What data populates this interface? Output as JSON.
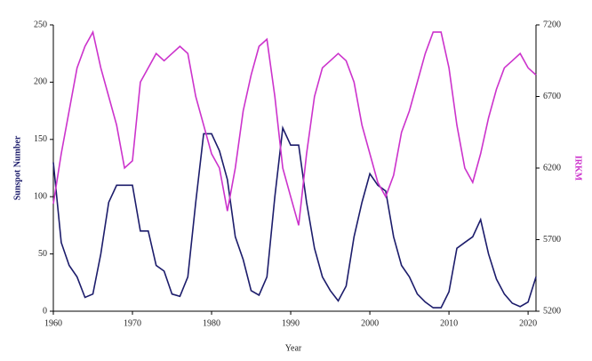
{
  "chart_data": {
    "type": "line",
    "x_label": "Year",
    "y_label": "Sunspot Number",
    "y2_label": "IRKM",
    "x": [
      1960,
      1961,
      1962,
      1963,
      1964,
      1965,
      1966,
      1967,
      1968,
      1969,
      1970,
      1971,
      1972,
      1973,
      1974,
      1975,
      1976,
      1977,
      1978,
      1979,
      1980,
      1981,
      1982,
      1983,
      1984,
      1985,
      1986,
      1987,
      1988,
      1989,
      1990,
      1991,
      1992,
      1993,
      1994,
      1995,
      1996,
      1997,
      1998,
      1999,
      2000,
      2001,
      2002,
      2003,
      2004,
      2005,
      2006,
      2007,
      2008,
      2009,
      2010,
      2011,
      2012,
      2013,
      2014,
      2015,
      2016,
      2017,
      2018,
      2019,
      2020,
      2021
    ],
    "series": [
      {
        "name": "Sunspot Number",
        "color": "#1c1c6b",
        "values": [
          130,
          60,
          40,
          30,
          12,
          15,
          50,
          95,
          110,
          110,
          110,
          70,
          70,
          40,
          35,
          15,
          13,
          30,
          95,
          155,
          155,
          140,
          115,
          65,
          45,
          18,
          14,
          30,
          100,
          160,
          145,
          145,
          95,
          55,
          30,
          18,
          9,
          22,
          65,
          95,
          120,
          110,
          105,
          65,
          40,
          30,
          15,
          8,
          3,
          3,
          17,
          55,
          60,
          65,
          80,
          50,
          28,
          15,
          7,
          4,
          8,
          30
        ]
      },
      {
        "name": "IRKM",
        "color": "#cc33cc",
        "axis": "y2",
        "values": [
          5950,
          6300,
          6600,
          6900,
          7050,
          7150,
          6900,
          6700,
          6500,
          6200,
          6250,
          6800,
          6900,
          7000,
          6950,
          7000,
          7050,
          7000,
          6700,
          6500,
          6300,
          6200,
          5900,
          6200,
          6600,
          6850,
          7050,
          7100,
          6700,
          6200,
          6000,
          5800,
          6300,
          6700,
          6900,
          6950,
          7000,
          6950,
          6800,
          6500,
          6300,
          6100,
          6000,
          6150,
          6450,
          6600,
          6800,
          7000,
          7150,
          7150,
          6900,
          6500,
          6200,
          6100,
          6300,
          6550,
          6750,
          6900,
          6950,
          7000,
          6900,
          6850
        ]
      }
    ],
    "xlim": [
      1960,
      2021
    ],
    "xticks": [
      1960,
      1970,
      1980,
      1990,
      2000,
      2010,
      2020
    ],
    "ylim": [
      0,
      250
    ],
    "yticks": [
      0,
      50,
      100,
      150,
      200,
      250
    ],
    "y2lim": [
      5200,
      7200
    ],
    "y2ticks": [
      5200,
      5700,
      6200,
      6700,
      7200
    ],
    "grid": false
  }
}
